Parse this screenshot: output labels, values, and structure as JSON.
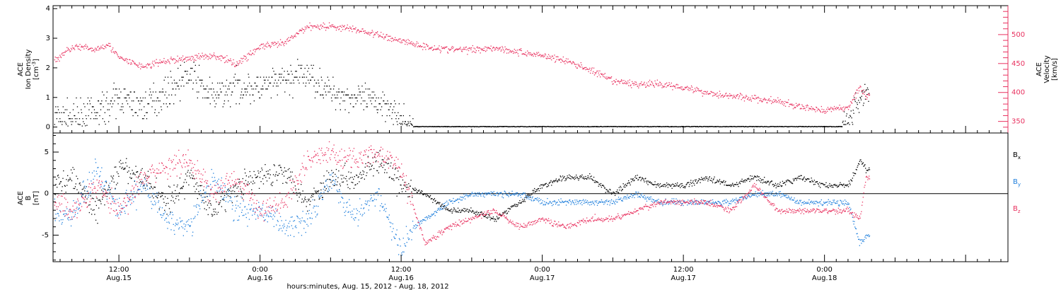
{
  "figure": {
    "xlabel": "hours:minutes, Aug. 15, 2012 - Aug. 18, 2012",
    "colors": {
      "black": "#000000",
      "red": "#e8315f",
      "blue": "#1f7fdc"
    },
    "x_ticks": [
      {
        "t": "12:00",
        "d": "Aug.15",
        "h": 12
      },
      {
        "t": "0:00",
        "d": "Aug.16",
        "h": 24
      },
      {
        "t": "12:00",
        "d": "Aug.16",
        "h": 36
      },
      {
        "t": "0:00",
        "d": "Aug.17",
        "h": 48
      },
      {
        "t": "12:00",
        "d": "Aug.17",
        "h": 60
      },
      {
        "t": "0:00",
        "d": "Aug.18",
        "h": 72
      }
    ],
    "x_range_hours": [
      6.4,
      87.6
    ]
  },
  "chart_data": [
    {
      "type": "scatter",
      "panel": "top",
      "ylabel": [
        "ACE",
        "Ion Density",
        "[cm",
        "-3",
        "]"
      ],
      "ylim": [
        -0.2,
        4.1
      ],
      "y_ticks": [
        0,
        1,
        2,
        3,
        4
      ],
      "y2label": [
        "ACE",
        "Velocity",
        "[km/s]"
      ],
      "y2lim": [
        330,
        550
      ],
      "y2_ticks": [
        350,
        400,
        450,
        500
      ],
      "series": [
        {
          "axis": "left",
          "color": "#000000",
          "x": [
            6.5,
            8,
            10,
            12,
            14,
            16,
            18,
            20,
            22,
            24,
            26,
            28,
            30,
            32,
            33,
            35,
            36,
            37,
            38,
            40,
            44,
            48,
            52,
            56,
            60,
            64,
            68,
            70,
            72,
            74,
            75,
            75.5
          ],
          "y": [
            0.4,
            0.3,
            0.5,
            1.0,
            0.7,
            1.2,
            1.8,
            1.0,
            1.4,
            1.3,
            1.6,
            1.8,
            1.2,
            1.0,
            0.9,
            0.8,
            0.1,
            0.05,
            0.05,
            0.02,
            0.02,
            0.02,
            0.02,
            0.02,
            0.03,
            0.1,
            0.1,
            0.1,
            0.1,
            0.2,
            1.0,
            1.2
          ]
        },
        {
          "axis": "right",
          "color": "#e8315f",
          "x": [
            6.5,
            8,
            10,
            11,
            12,
            14,
            16,
            18,
            20,
            22,
            24,
            26,
            27,
            28,
            30,
            32,
            34,
            36,
            38,
            40,
            42,
            44,
            46,
            48,
            50,
            52,
            54,
            56,
            58,
            60,
            62,
            64,
            66,
            68,
            70,
            72,
            74,
            75,
            75.5
          ],
          "y": [
            455,
            480,
            475,
            485,
            460,
            445,
            455,
            460,
            465,
            450,
            480,
            485,
            500,
            515,
            515,
            510,
            500,
            490,
            480,
            475,
            475,
            478,
            470,
            465,
            455,
            440,
            420,
            415,
            415,
            410,
            400,
            395,
            390,
            385,
            375,
            370,
            375,
            410,
            395
          ]
        }
      ]
    },
    {
      "type": "scatter",
      "panel": "bottom",
      "ylabel": [
        "ACE",
        "B",
        "[nT]"
      ],
      "ylim": [
        -8.2,
        7.3
      ],
      "y_ticks": [
        -5,
        0,
        5
      ],
      "legend": [
        {
          "label": "B",
          "sub": "x",
          "color": "#000000"
        },
        {
          "label": "B",
          "sub": "y",
          "color": "#1f7fdc"
        },
        {
          "label": "B",
          "sub": "z",
          "color": "#e8315f"
        }
      ],
      "series": [
        {
          "color": "#000000",
          "x": [
            6.5,
            8,
            10,
            12,
            14,
            16,
            18,
            20,
            22,
            24,
            26,
            28,
            30,
            32,
            34,
            36,
            38,
            40,
            42,
            44,
            46,
            48,
            50,
            52,
            54,
            56,
            58,
            60,
            62,
            64,
            66,
            68,
            70,
            72,
            74,
            75,
            75.5
          ],
          "y": [
            1,
            2,
            -2,
            3,
            2,
            -1,
            2,
            -2,
            1,
            2,
            3,
            -1,
            2,
            2,
            4,
            1,
            0,
            -2,
            -2,
            -3,
            -1,
            1,
            2,
            2,
            0,
            2,
            1,
            1,
            2,
            1,
            2,
            1,
            2,
            1,
            1,
            4,
            3
          ]
        },
        {
          "color": "#1f7fdc",
          "x": [
            6.5,
            8,
            10,
            12,
            14,
            16,
            18,
            20,
            22,
            24,
            26,
            28,
            30,
            32,
            34,
            36,
            37,
            38,
            40,
            42,
            44,
            46,
            48,
            50,
            52,
            54,
            56,
            58,
            60,
            62,
            64,
            66,
            68,
            70,
            72,
            74,
            75,
            75.5
          ],
          "y": [
            -2,
            -3,
            3,
            -2,
            1,
            -3,
            -4,
            2,
            -2,
            -2,
            -4,
            -3,
            2,
            -3,
            0,
            -7,
            -4,
            -3,
            -1,
            0,
            0,
            0,
            -1,
            -1,
            -1,
            -1,
            0,
            -1,
            -1,
            -1,
            -1,
            0,
            0,
            -1,
            -1,
            -1,
            -6,
            -5
          ]
        },
        {
          "color": "#e8315f",
          "x": [
            6.5,
            8,
            10,
            12,
            14,
            16,
            18,
            20,
            22,
            24,
            26,
            28,
            30,
            32,
            34,
            36,
            38,
            40,
            42,
            44,
            46,
            48,
            50,
            52,
            54,
            56,
            58,
            60,
            62,
            64,
            66,
            68,
            70,
            72,
            74,
            75,
            75.5
          ],
          "y": [
            -1,
            -2,
            1,
            -2,
            2,
            3,
            4,
            0,
            2,
            -2,
            -1,
            4,
            5,
            4,
            5,
            3,
            -6,
            -4,
            -3,
            -2,
            -4,
            -3,
            -4,
            -3,
            -3,
            -2,
            -1,
            -1,
            -1,
            -2,
            1,
            -2,
            -2,
            -2,
            -2,
            -3,
            2
          ]
        }
      ]
    }
  ]
}
